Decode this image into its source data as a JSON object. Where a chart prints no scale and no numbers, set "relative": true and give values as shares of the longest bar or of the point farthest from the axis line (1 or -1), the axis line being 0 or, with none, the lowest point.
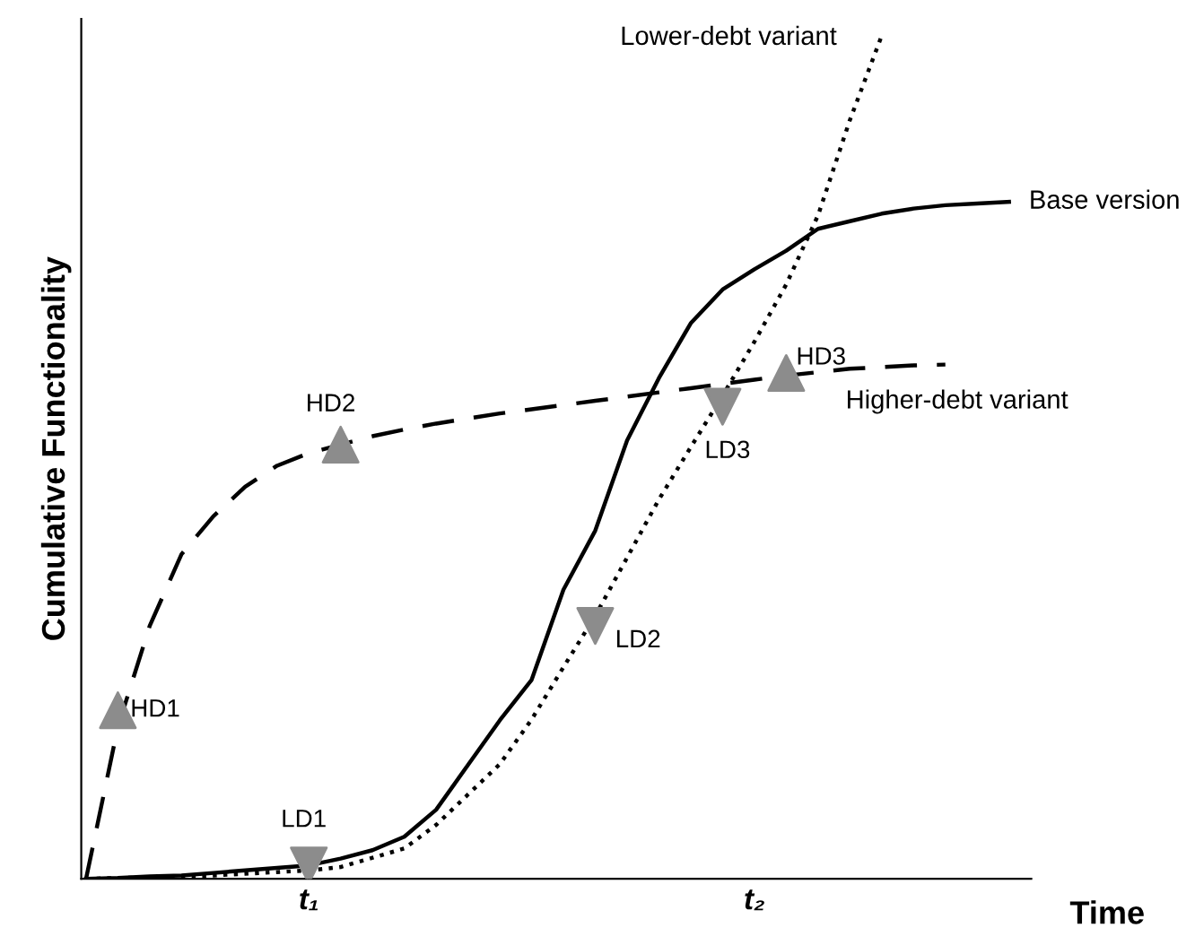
{
  "chart_data": {
    "type": "line",
    "relative": true,
    "xlabel": "Time",
    "ylabel": "Cumulative Functionality",
    "categories": [
      null,
      null,
      null,
      null,
      null,
      null,
      null,
      "t₁",
      null,
      null,
      null,
      null,
      null,
      null,
      null,
      null,
      null,
      null,
      null,
      null,
      null,
      "t₂",
      null,
      null,
      null,
      null,
      null,
      null,
      null,
      null
    ],
    "series": [
      {
        "name": "Higher-debt variant",
        "color": "#000000",
        "line_style": "dashed",
        "values": [
          0,
          0.18,
          0.3,
          0.385,
          0.43,
          0.465,
          0.49,
          0.505,
          0.515,
          0.525,
          0.533,
          0.54,
          0.546,
          0.552,
          0.557,
          0.562,
          0.567,
          0.572,
          0.577,
          0.582,
          0.587,
          0.592,
          0.597,
          0.601,
          0.605,
          0.607,
          0.609,
          0.61,
          null,
          null
        ]
      },
      {
        "name": "Base version",
        "color": "#000000",
        "line_style": "solid",
        "values": [
          0,
          0.001,
          0.003,
          0.004,
          0.007,
          0.01,
          0.013,
          0.016,
          0.024,
          0.034,
          0.05,
          0.082,
          0.135,
          0.188,
          0.236,
          0.343,
          0.413,
          0.52,
          0.594,
          0.659,
          0.699,
          0.723,
          0.745,
          0.771,
          0.78,
          0.789,
          0.795,
          0.799,
          0.801,
          0.803
        ]
      },
      {
        "name": "Lower-debt variant",
        "color": "#000000",
        "line_style": "dotted",
        "values": [
          0,
          0.001,
          0.002,
          0.003,
          0.004,
          0.006,
          0.008,
          0.01,
          0.014,
          0.025,
          0.036,
          0.064,
          0.1,
          0.136,
          0.189,
          0.251,
          0.312,
          0.381,
          0.45,
          0.512,
          0.573,
          0.637,
          0.705,
          0.787,
          0.9,
          1,
          null,
          null,
          null,
          null
        ]
      },
      {
        "type": "scatter",
        "marker": "triangle",
        "color": "#8c8c8c",
        "values": [
          null,
          0.2,
          null,
          null,
          null,
          null,
          null,
          null,
          0.515,
          null,
          null,
          null,
          null,
          null,
          null,
          null,
          null,
          null,
          null,
          null,
          null,
          null,
          0.6,
          null,
          null,
          null,
          null,
          null,
          null,
          null
        ]
      },
      {
        "type": "scatter",
        "marker": "triangle",
        "color": "#8c8c8c",
        "values": [
          null,
          null,
          null,
          null,
          null,
          null,
          null,
          0.016,
          null,
          null,
          null,
          null,
          null,
          null,
          null,
          null,
          0.3,
          null,
          null,
          null,
          0.56,
          null,
          null,
          null,
          null,
          null,
          null,
          null,
          null,
          null
        ]
      }
    ],
    "annotations": [
      "HD1",
      "HD2",
      "HD3",
      "LD1",
      "LD2",
      "LD3"
    ]
  }
}
